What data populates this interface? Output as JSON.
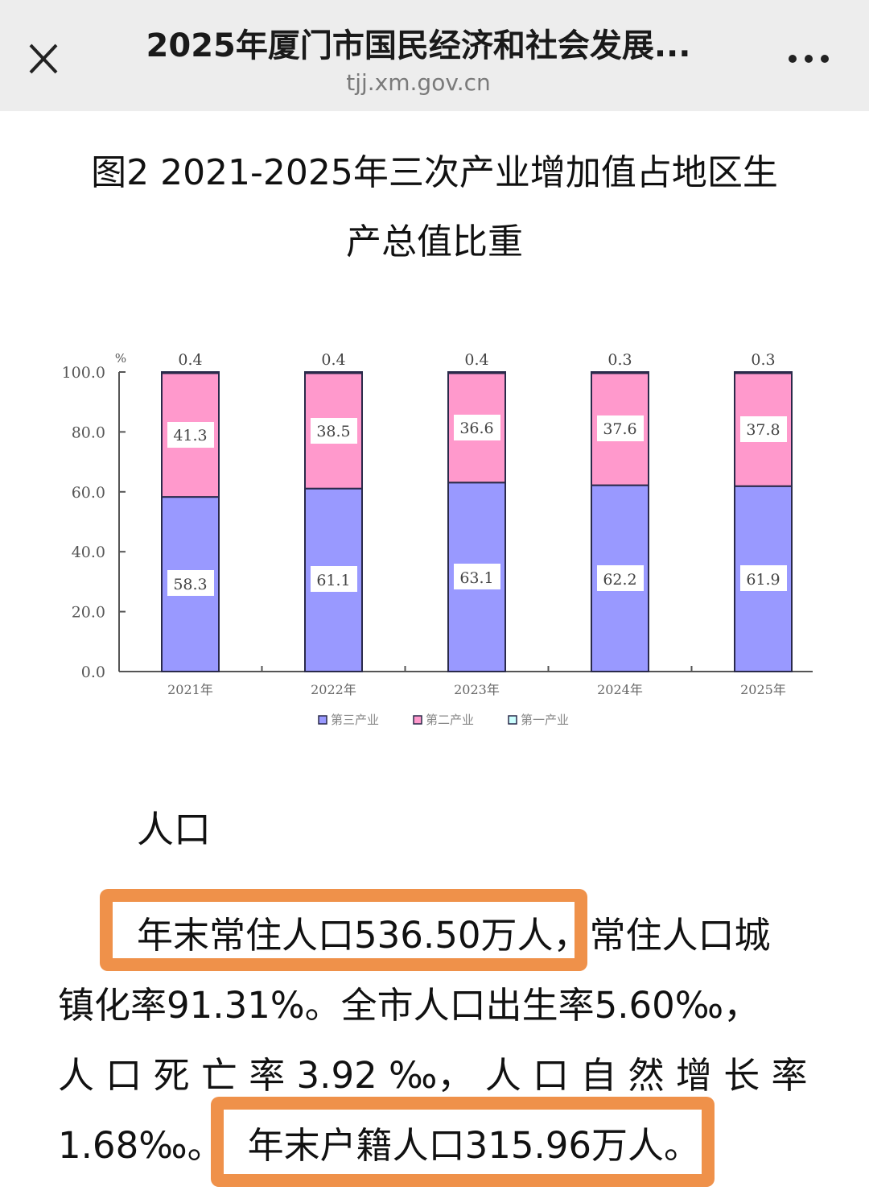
{
  "browser": {
    "title": "2025年厦门市国民经济和社会发展...",
    "domain": "tjj.xm.gov.cn",
    "close_icon": "close-icon",
    "more_icon": "more-horizontal-icon"
  },
  "figure": {
    "title_line1": "图2  2021-2025年三次产业增加值占地区生",
    "title_line2": "产总值比重"
  },
  "chart_data": {
    "type": "bar",
    "stacked": true,
    "title": "图2 2021-2025年三次产业增加值占地区生产总值比重",
    "xlabel": "",
    "ylabel": "%",
    "ylim": [
      0,
      100
    ],
    "yticks": [
      "0.0",
      "20.0",
      "40.0",
      "60.0",
      "80.0",
      "100.0"
    ],
    "categories": [
      "2021年",
      "2022年",
      "2023年",
      "2024年",
      "2025年"
    ],
    "series": [
      {
        "name": "第三产业",
        "color": "#9999ff",
        "values": [
          58.3,
          61.1,
          63.1,
          62.2,
          61.9
        ]
      },
      {
        "name": "第二产业",
        "color": "#ff99cc",
        "values": [
          41.3,
          38.5,
          36.6,
          37.6,
          37.8
        ]
      },
      {
        "name": "第一产业",
        "color": "#ccffff",
        "values": [
          0.4,
          0.4,
          0.4,
          0.3,
          0.3
        ]
      }
    ],
    "labels": {
      "tertiary": [
        "58.3",
        "61.1",
        "63.1",
        "62.2",
        "61.9"
      ],
      "secondary": [
        "41.3",
        "38.5",
        "36.6",
        "37.6",
        "37.8"
      ],
      "primary": [
        "0.4",
        "0.4",
        "0.4",
        "0.3",
        "0.3"
      ]
    },
    "legend": [
      "第三产业",
      "第二产业",
      "第一产业"
    ],
    "legend_position": "bottom",
    "grid": false,
    "unit_label": "%"
  },
  "population": {
    "heading": "人口",
    "line1_highlight": "年末常住人口536.50万人",
    "line1_rest": "，常住人口城",
    "line2": "镇化率91.31%。全市人口出生率5.60‰，",
    "line3": "人 口 死 亡 率 3.92 ‰， 人 口 自 然 增 长 率",
    "line4_start": "1.68‰。",
    "line4_highlight": "年末户籍人口315.96万人。",
    "highlight_color": "#ef914a"
  }
}
